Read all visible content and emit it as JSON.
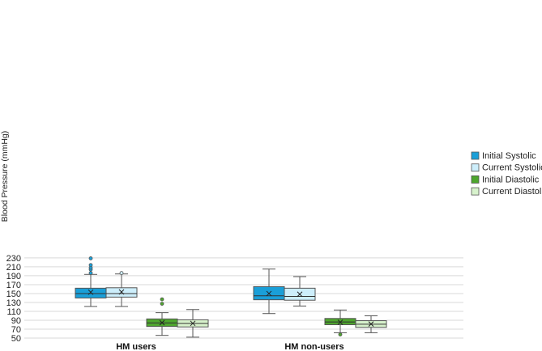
{
  "chart_data": {
    "type": "box",
    "title": "",
    "xlabel": "",
    "ylabel": "Blood Pressure (mmHg)",
    "ylim": [
      50,
      235
    ],
    "yticks": [
      50,
      70,
      90,
      110,
      130,
      150,
      170,
      190,
      210,
      230
    ],
    "grid": true,
    "legend_position": "right",
    "categories": [
      "HM users",
      "HM non-users"
    ],
    "series": [
      {
        "name": "Initial Systolic",
        "color": "#1a9fd8",
        "boxes": [
          {
            "min": 121,
            "q1": 140,
            "median": 150,
            "q3": 162,
            "max": 193,
            "mean": 153,
            "outliers": [
              196,
              204,
              208,
              214,
              229
            ]
          },
          {
            "min": 105,
            "q1": 136,
            "median": 145,
            "q3": 165.5,
            "max": 205,
            "mean": 150,
            "outliers": []
          }
        ]
      },
      {
        "name": "Current Systolic",
        "color": "#cdeefb",
        "boxes": [
          {
            "min": 121,
            "q1": 142,
            "median": 150,
            "q3": 163,
            "max": 194,
            "mean": 153.5,
            "outliers": [
              196
            ]
          },
          {
            "min": 122,
            "q1": 135,
            "median": 143.5,
            "q3": 162,
            "max": 188,
            "mean": 148.5,
            "outliers": []
          }
        ]
      },
      {
        "name": "Initial Diastolic",
        "color": "#4ea62e",
        "boxes": [
          {
            "min": 56,
            "q1": 76,
            "median": 84,
            "q3": 93,
            "max": 107,
            "mean": 84.5,
            "outliers": [
              127,
              137
            ]
          },
          {
            "min": 62,
            "q1": 80,
            "median": 86,
            "q3": 94,
            "max": 113,
            "mean": 85.5,
            "outliers": [
              58
            ]
          }
        ]
      },
      {
        "name": "Current Diastolic",
        "color": "#d7f2cc",
        "boxes": [
          {
            "min": 52,
            "q1": 75,
            "median": 83,
            "q3": 91,
            "max": 114,
            "mean": 83,
            "outliers": []
          },
          {
            "min": 62,
            "q1": 74,
            "median": 81,
            "q3": 89,
            "max": 100,
            "mean": 81.5,
            "outliers": []
          }
        ]
      }
    ]
  }
}
